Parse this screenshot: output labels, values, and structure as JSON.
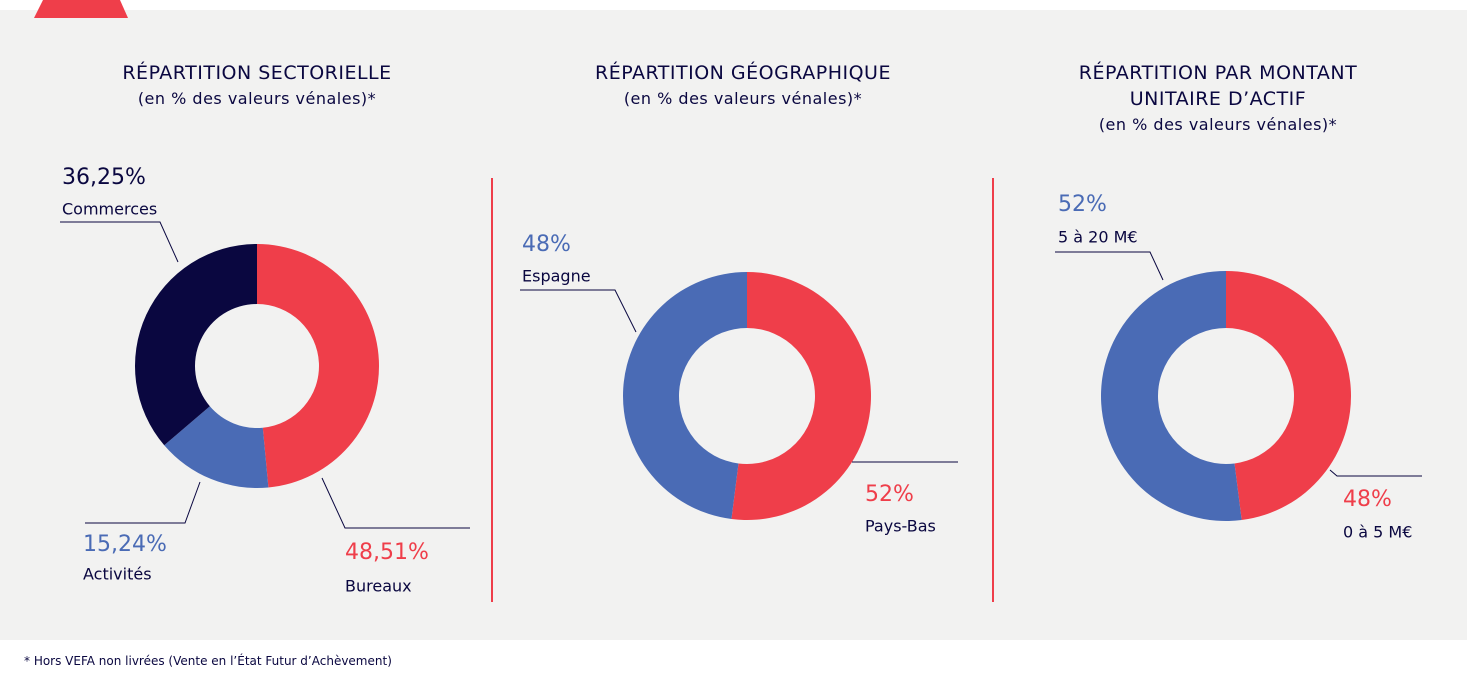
{
  "chart_data": [
    {
      "type": "pie",
      "title": "RÉPARTITION SECTORIELLE",
      "subtitle": "(en % des valeurs vénales)*",
      "categories": [
        "Bureaux",
        "Activités",
        "Commerces"
      ],
      "values": [
        48.51,
        15.24,
        36.25
      ],
      "value_labels": [
        "48,51%",
        "15,24%",
        "36,25%"
      ],
      "colors": [
        "#ef3e4a",
        "#4a6bb5",
        "#0a0740"
      ]
    },
    {
      "type": "pie",
      "title": "RÉPARTITION GÉOGRAPHIQUE",
      "subtitle": "(en % des valeurs vénales)*",
      "categories": [
        "Pays-Bas",
        "Espagne"
      ],
      "values": [
        52,
        48
      ],
      "value_labels": [
        "52%",
        "48%"
      ],
      "colors": [
        "#ef3e4a",
        "#4a6bb5"
      ]
    },
    {
      "type": "pie",
      "title": "RÉPARTITION PAR MONTANT UNITAIRE D’ACTIF",
      "subtitle": "(en % des valeurs vénales)*",
      "categories": [
        "0 à 5 M€",
        "5 à 20 M€"
      ],
      "values": [
        48,
        52
      ],
      "value_labels": [
        "48%",
        "52%"
      ],
      "colors": [
        "#ef3e4a",
        "#4a6bb5"
      ]
    }
  ],
  "footnote": "* Hors VEFA non livrées (Vente en l’État Futur d’Achèvement)"
}
